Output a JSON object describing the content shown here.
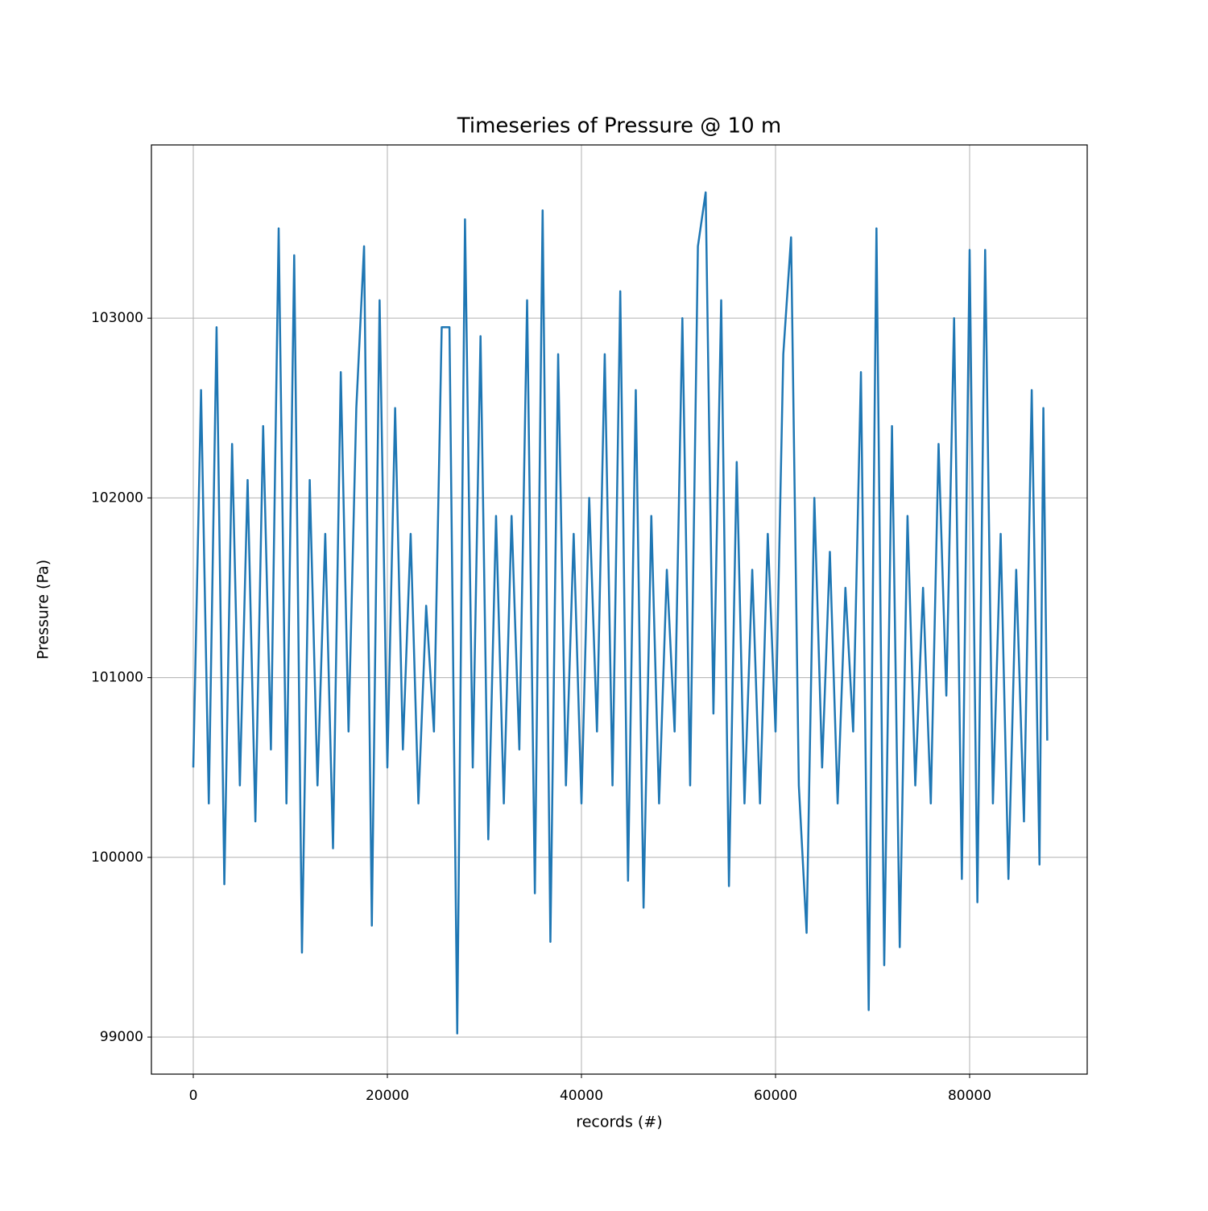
{
  "chart_data": {
    "type": "line",
    "title": "Timeseries of Pressure @ 10 m",
    "xlabel": "records (#)",
    "ylabel": "Pressure (Pa)",
    "color": "#1f77b4",
    "grid": true,
    "xlim": [
      -4315,
      92116
    ],
    "ylim": [
      98794,
      103964
    ],
    "xticks": [
      0,
      20000,
      40000,
      60000,
      80000
    ],
    "yticks": [
      99000,
      100000,
      101000,
      102000,
      103000
    ],
    "x": [
      0,
      800,
      1600,
      2400,
      3200,
      4000,
      4800,
      5600,
      6400,
      7200,
      8000,
      8800,
      9600,
      10400,
      11200,
      12000,
      12800,
      13600,
      14400,
      15200,
      16000,
      16800,
      17600,
      18400,
      19200,
      20000,
      20800,
      21600,
      22400,
      23200,
      24000,
      24800,
      25600,
      26400,
      27200,
      28000,
      28800,
      29600,
      30400,
      31200,
      32000,
      32800,
      33600,
      34400,
      35200,
      36000,
      36800,
      37600,
      38400,
      39200,
      40000,
      40800,
      41600,
      42400,
      43200,
      44000,
      44800,
      45600,
      46400,
      47200,
      48000,
      48800,
      49600,
      50400,
      51200,
      52000,
      52800,
      53600,
      54400,
      55200,
      56000,
      56800,
      57600,
      58400,
      59200,
      60000,
      60800,
      61600,
      62400,
      63200,
      64000,
      64800,
      65600,
      66400,
      67200,
      68000,
      68800,
      69600,
      70400,
      71200,
      72000,
      72800,
      73600,
      74400,
      75200,
      76000,
      76800,
      77600,
      78400,
      79200,
      80000,
      80800,
      81600,
      82400,
      83200,
      84000,
      84800,
      85600,
      86400,
      87200,
      87600,
      88000
    ],
    "values": [
      100500,
      102600,
      100300,
      102950,
      99850,
      102300,
      100400,
      102100,
      100200,
      102400,
      100600,
      103500,
      100300,
      103350,
      99470,
      102100,
      100400,
      101800,
      100050,
      102700,
      100700,
      102500,
      103400,
      99620,
      103100,
      100500,
      102500,
      100600,
      101800,
      100300,
      101400,
      100700,
      102950,
      102950,
      99020,
      103550,
      100500,
      102900,
      100100,
      101900,
      100300,
      101900,
      100600,
      103100,
      99800,
      103600,
      99530,
      102800,
      100400,
      101800,
      100300,
      102000,
      100700,
      102800,
      100400,
      103150,
      99870,
      102600,
      99720,
      101900,
      100300,
      101600,
      100700,
      103000,
      100400,
      103400,
      103700,
      100800,
      103100,
      99840,
      102200,
      100300,
      101600,
      100300,
      101800,
      100700,
      102800,
      103450,
      100400,
      99580,
      102000,
      100500,
      101700,
      100300,
      101500,
      100700,
      102700,
      99150,
      103500,
      99400,
      102400,
      99500,
      101900,
      100400,
      101500,
      100300,
      102300,
      100900,
      103000,
      99880,
      103380,
      99750,
      103380,
      100300,
      101800,
      99880,
      101600,
      100200,
      102600,
      99960,
      102500,
      100650
    ]
  }
}
